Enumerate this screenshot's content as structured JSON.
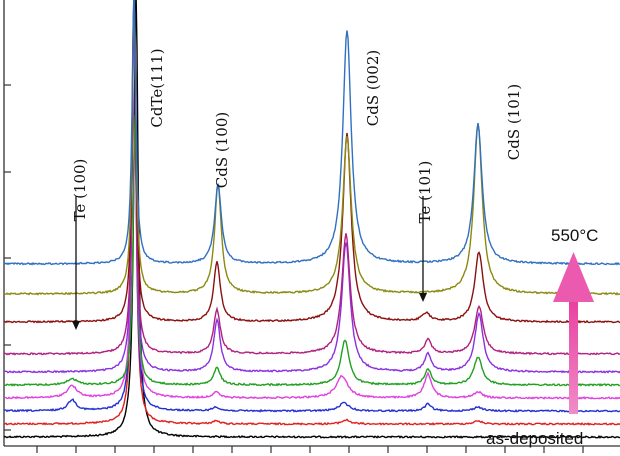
{
  "chart_data": {
    "type": "line",
    "title": "",
    "xlabel": "",
    "ylabel": "",
    "xlim": [
      0,
      620
    ],
    "ylim": [
      0,
      456
    ],
    "grid": false,
    "legend": "none",
    "series": [
      {
        "color": "#000000",
        "baseline": 437,
        "peaks": [
          [
            136,
            2.5,
            450
          ]
        ]
      },
      {
        "color": "#e02020",
        "baseline": 424,
        "peaks": [
          [
            134,
            2.2,
            440
          ],
          [
            216,
            4,
            3
          ],
          [
            346,
            5,
            4
          ],
          [
            478,
            5,
            3
          ]
        ]
      },
      {
        "color": "#2030d0",
        "baseline": 411,
        "peaks": [
          [
            72,
            5,
            11
          ],
          [
            134,
            2.2,
            430
          ],
          [
            216,
            4,
            4
          ],
          [
            344,
            6,
            8
          ],
          [
            428,
            4,
            7
          ],
          [
            478,
            5,
            4
          ]
        ]
      },
      {
        "color": "#e040e0",
        "baseline": 398,
        "peaks": [
          [
            72,
            6,
            12
          ],
          [
            134,
            2.2,
            420
          ],
          [
            216,
            4,
            6
          ],
          [
            342,
            7,
            22
          ],
          [
            428,
            4.5,
            24
          ],
          [
            478,
            5,
            6
          ]
        ]
      },
      {
        "color": "#20a020",
        "baseline": 385,
        "peaks": [
          [
            72,
            6,
            6
          ],
          [
            135,
            2.2,
            270
          ],
          [
            217,
            4,
            17
          ],
          [
            345,
            5,
            45
          ],
          [
            428,
            4,
            16
          ],
          [
            478,
            5,
            28
          ]
        ]
      },
      {
        "color": "#8a30e0",
        "baseline": 372,
        "peaks": [
          [
            134,
            2.2,
            380
          ],
          [
            217,
            4,
            52
          ],
          [
            346,
            5,
            130
          ],
          [
            428,
            4,
            18
          ],
          [
            479,
            5,
            58
          ]
        ]
      },
      {
        "color": "#b02080",
        "baseline": 354,
        "peaks": [
          [
            134,
            2.2,
            360
          ],
          [
            217,
            4,
            44
          ],
          [
            346,
            5,
            120
          ],
          [
            428,
            4,
            14
          ],
          [
            479,
            5,
            48
          ]
        ]
      },
      {
        "color": "#8a1010",
        "baseline": 322,
        "peaks": [
          [
            134,
            2.2,
            340
          ],
          [
            217,
            4,
            60
          ],
          [
            347,
            5,
            188
          ],
          [
            426,
            5,
            8
          ],
          [
            479,
            5,
            70
          ]
        ]
      },
      {
        "color": "#8a8a10",
        "baseline": 294,
        "peaks": [
          [
            134,
            2.2,
            300
          ],
          [
            218,
            4,
            110
          ],
          [
            347,
            5,
            158
          ],
          [
            478,
            5,
            170
          ]
        ]
      },
      {
        "color": "#3070c0",
        "baseline": 264,
        "peaks": [
          [
            134,
            2.2,
            280
          ],
          [
            218,
            4,
            80
          ],
          [
            347,
            5,
            234
          ],
          [
            478,
            5,
            140
          ]
        ]
      }
    ],
    "annotations": [
      {
        "text": "CdTe(111)",
        "x": 162,
        "y": 88,
        "rotate": -90
      },
      {
        "text": "CdS (100)",
        "x": 227,
        "y": 150,
        "rotate": -90
      },
      {
        "text": "CdS (002)",
        "x": 378,
        "y": 88,
        "rotate": -90
      },
      {
        "text": "CdS (101)",
        "x": 519,
        "y": 122,
        "rotate": -90
      },
      {
        "text": "Te (100)",
        "x": 85,
        "y": 190,
        "rotate": -90
      },
      {
        "text": "Te (101)",
        "x": 430,
        "y": 192,
        "rotate": -90
      }
    ],
    "arrows": [
      {
        "x": 76,
        "y1": 196,
        "y2": 330
      },
      {
        "x": 423,
        "y1": 196,
        "y2": 302
      }
    ],
    "temp_label": "550°C",
    "start_label": "as-deposited",
    "big_arrow_color": "#ec5ab0"
  }
}
